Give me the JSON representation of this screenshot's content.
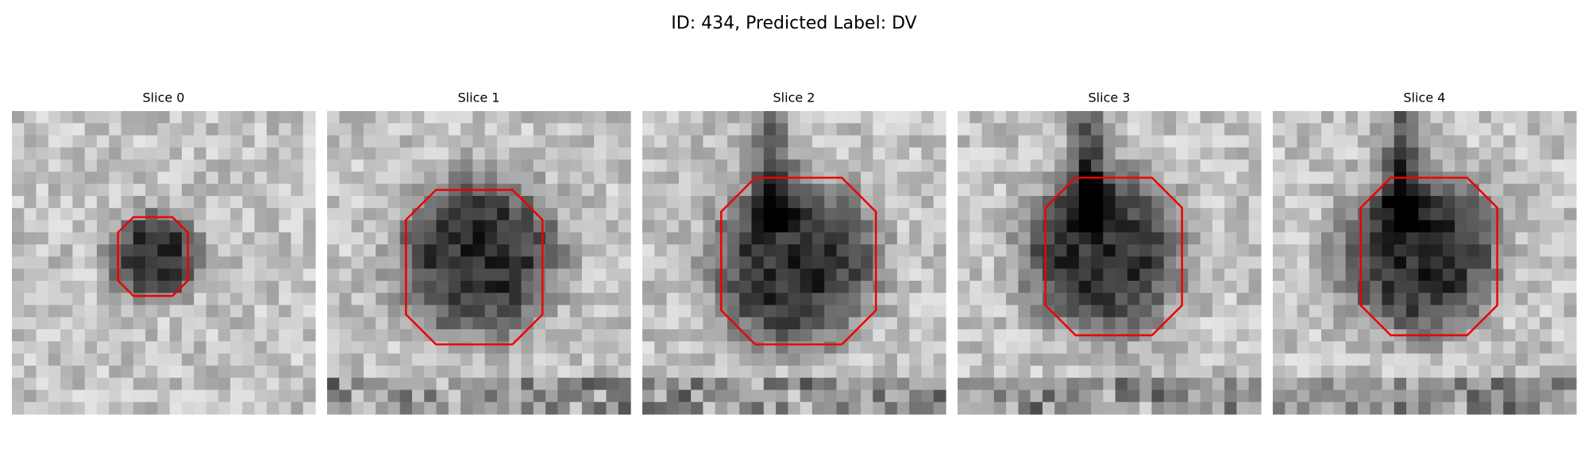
{
  "title": "ID: 434, Predicted Label: DV",
  "panels": [
    {
      "title": "Slice 0"
    },
    {
      "title": "Slice 1"
    },
    {
      "title": "Slice 2"
    },
    {
      "title": "Slice 3"
    },
    {
      "title": "Slice 4"
    }
  ]
}
